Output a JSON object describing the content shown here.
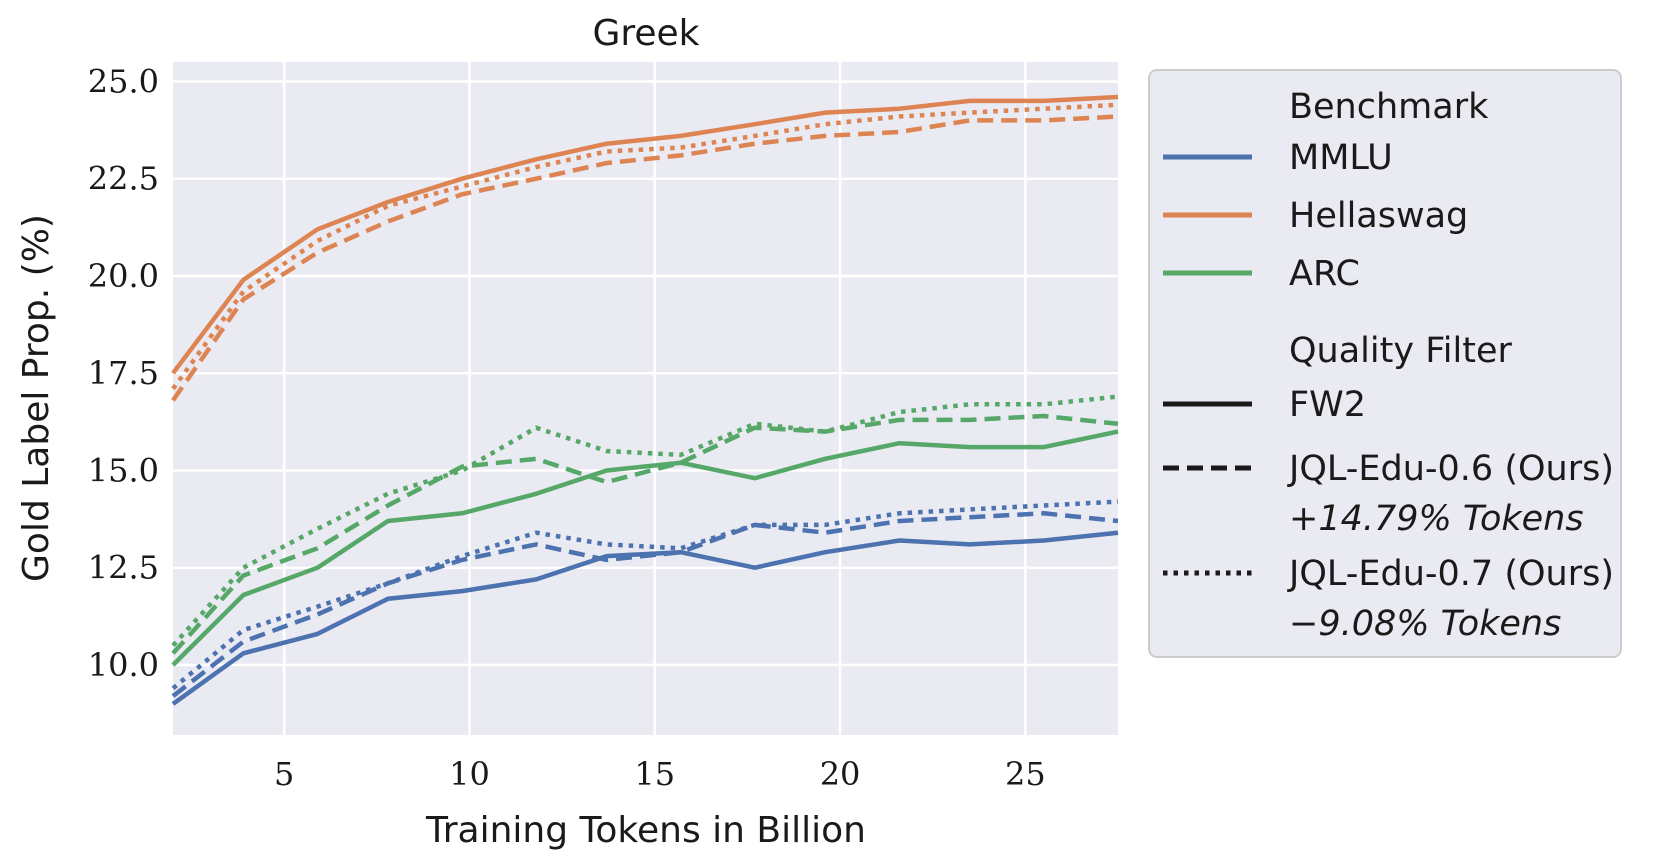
{
  "chart_data": {
    "type": "line",
    "title": "Greek",
    "xlabel": "Training Tokens in Billion",
    "ylabel": "Gold Label Prop. (%)",
    "xlim": [
      2,
      27.5
    ],
    "ylim": [
      8.2,
      25.5
    ],
    "xticks": [
      5,
      10,
      15,
      20,
      25
    ],
    "xtick_labels": [
      "5",
      "10",
      "15",
      "20",
      "25"
    ],
    "yticks": [
      10.0,
      12.5,
      15.0,
      17.5,
      20.0,
      22.5,
      25.0
    ],
    "ytick_labels": [
      "10.0",
      "12.5",
      "15.0",
      "17.5",
      "20.0",
      "22.5",
      "25.0"
    ],
    "grid": true,
    "legend_position": "outside-right",
    "legend_benchmark_title": "Benchmark",
    "legend_filter_title": "Quality Filter",
    "benchmarks": [
      {
        "name": "MMLU",
        "color": "#4c72b0"
      },
      {
        "name": "Hellaswag",
        "color": "#dd8452"
      },
      {
        "name": "ARC",
        "color": "#55a868"
      }
    ],
    "filters": [
      {
        "name": "FW2",
        "style": "solid",
        "note": ""
      },
      {
        "name": "JQL-Edu-0.6 (Ours)",
        "style": "dashed",
        "note": "+14.79% Tokens"
      },
      {
        "name": "JQL-Edu-0.7 (Ours)",
        "style": "dotted",
        "note": "−9.08% Tokens"
      }
    ],
    "series": [
      {
        "benchmark": "MMLU",
        "filter": "FW2",
        "x": [
          2,
          3.9,
          5.9,
          7.8,
          9.8,
          11.8,
          13.7,
          15.7,
          17.7,
          19.6,
          21.6,
          23.5,
          25.5,
          27.5
        ],
        "y": [
          9.0,
          10.3,
          10.8,
          11.7,
          11.9,
          12.2,
          12.8,
          12.9,
          12.5,
          12.9,
          13.2,
          13.1,
          13.2,
          13.4
        ]
      },
      {
        "benchmark": "MMLU",
        "filter": "JQL-Edu-0.6 (Ours)",
        "x": [
          2,
          3.9,
          5.9,
          7.8,
          9.8,
          11.8,
          13.7,
          15.7,
          17.7,
          19.6,
          21.6,
          23.5,
          25.5,
          27.5
        ],
        "y": [
          9.2,
          10.6,
          11.3,
          12.1,
          12.7,
          13.1,
          12.7,
          12.9,
          13.6,
          13.4,
          13.7,
          13.8,
          13.9,
          13.7
        ]
      },
      {
        "benchmark": "MMLU",
        "filter": "JQL-Edu-0.7 (Ours)",
        "x": [
          2,
          3.9,
          5.9,
          7.8,
          9.8,
          11.8,
          13.7,
          15.7,
          17.7,
          19.6,
          21.6,
          23.5,
          25.5,
          27.5
        ],
        "y": [
          9.4,
          10.9,
          11.5,
          12.1,
          12.8,
          13.4,
          13.1,
          13.0,
          13.6,
          13.6,
          13.9,
          14.0,
          14.1,
          14.2
        ]
      },
      {
        "benchmark": "Hellaswag",
        "filter": "FW2",
        "x": [
          2,
          3.9,
          5.9,
          7.8,
          9.8,
          11.8,
          13.7,
          15.7,
          17.7,
          19.6,
          21.6,
          23.5,
          25.5,
          27.5
        ],
        "y": [
          17.5,
          19.9,
          21.2,
          21.9,
          22.5,
          23.0,
          23.4,
          23.6,
          23.9,
          24.2,
          24.3,
          24.5,
          24.5,
          24.6
        ]
      },
      {
        "benchmark": "Hellaswag",
        "filter": "JQL-Edu-0.6 (Ours)",
        "x": [
          2,
          3.9,
          5.9,
          7.8,
          9.8,
          11.8,
          13.7,
          15.7,
          17.7,
          19.6,
          21.6,
          23.5,
          25.5,
          27.5
        ],
        "y": [
          16.8,
          19.4,
          20.6,
          21.4,
          22.1,
          22.5,
          22.9,
          23.1,
          23.4,
          23.6,
          23.7,
          24.0,
          24.0,
          24.1
        ]
      },
      {
        "benchmark": "Hellaswag",
        "filter": "JQL-Edu-0.7 (Ours)",
        "x": [
          2,
          3.9,
          5.9,
          7.8,
          9.8,
          11.8,
          13.7,
          15.7,
          17.7,
          19.6,
          21.6,
          23.5,
          25.5,
          27.5
        ],
        "y": [
          17.1,
          19.6,
          20.9,
          21.8,
          22.3,
          22.8,
          23.2,
          23.3,
          23.6,
          23.9,
          24.1,
          24.2,
          24.3,
          24.4
        ]
      },
      {
        "benchmark": "ARC",
        "filter": "FW2",
        "x": [
          2,
          3.9,
          5.9,
          7.8,
          9.8,
          11.8,
          13.7,
          15.7,
          17.7,
          19.6,
          21.6,
          23.5,
          25.5,
          27.5
        ],
        "y": [
          10.0,
          11.8,
          12.5,
          13.7,
          13.9,
          14.4,
          15.0,
          15.2,
          14.8,
          15.3,
          15.7,
          15.6,
          15.6,
          16.0
        ]
      },
      {
        "benchmark": "ARC",
        "filter": "JQL-Edu-0.6 (Ours)",
        "x": [
          2,
          3.9,
          5.9,
          7.8,
          9.8,
          11.8,
          13.7,
          15.7,
          17.7,
          19.6,
          21.6,
          23.5,
          25.5,
          27.5
        ],
        "y": [
          10.3,
          12.3,
          13.0,
          14.1,
          15.1,
          15.3,
          14.7,
          15.2,
          16.1,
          16.0,
          16.3,
          16.3,
          16.4,
          16.2
        ]
      },
      {
        "benchmark": "ARC",
        "filter": "JQL-Edu-0.7 (Ours)",
        "x": [
          2,
          3.9,
          5.9,
          7.8,
          9.8,
          11.8,
          13.7,
          15.7,
          17.7,
          19.6,
          21.6,
          23.5,
          25.5,
          27.5
        ],
        "y": [
          10.5,
          12.5,
          13.5,
          14.4,
          15.0,
          16.1,
          15.5,
          15.4,
          16.2,
          16.0,
          16.5,
          16.7,
          16.7,
          16.9
        ]
      }
    ]
  }
}
